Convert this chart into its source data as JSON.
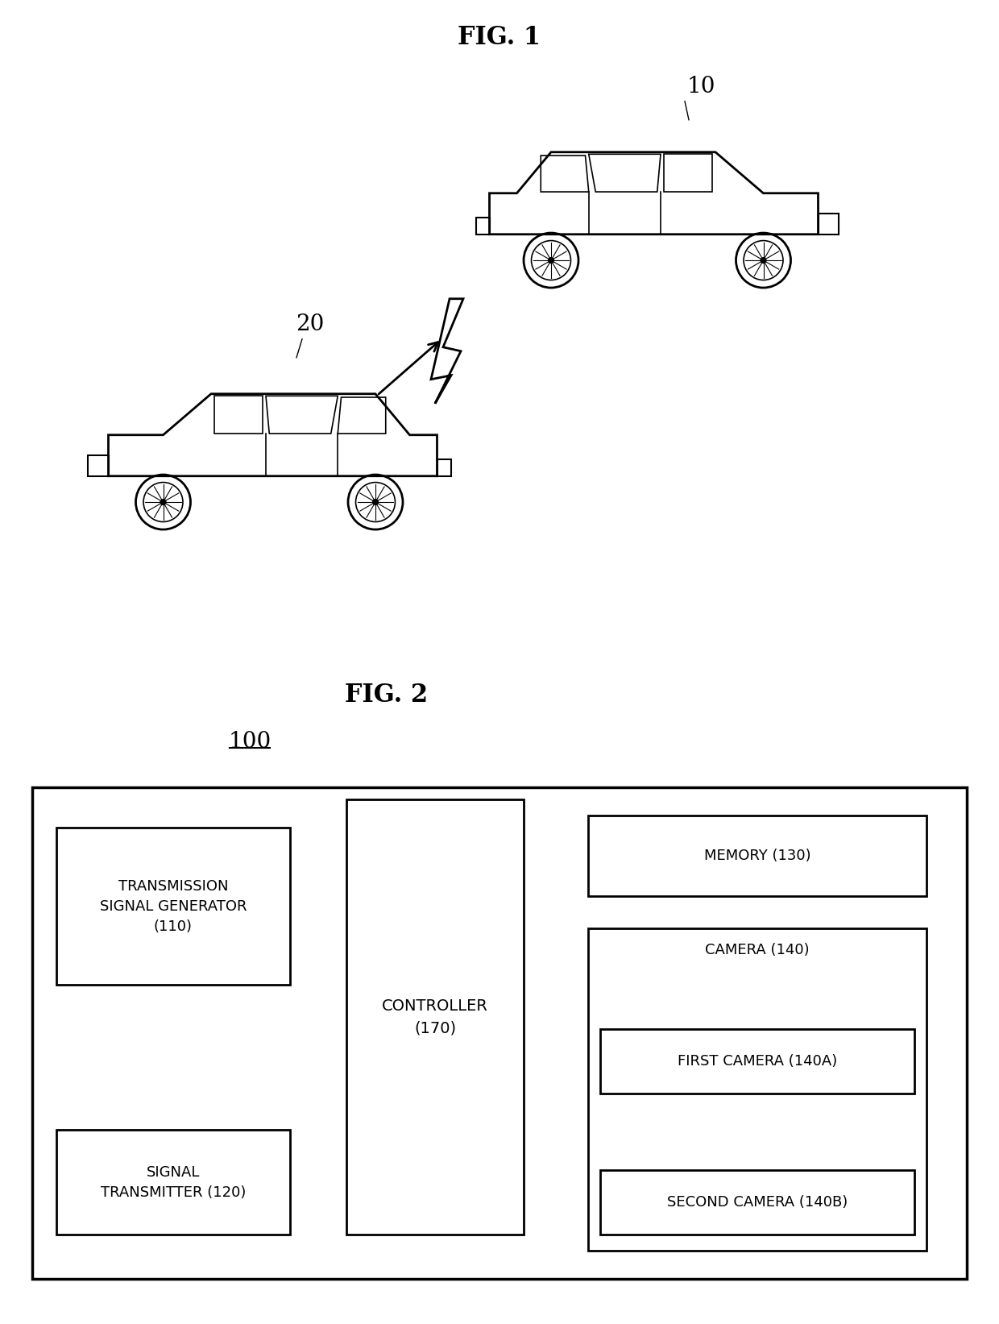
{
  "fig1_title": "FIG. 1",
  "fig2_title": "FIG. 2",
  "label_10": "10",
  "label_20": "20",
  "label_100": "100",
  "bg_color": "#ffffff",
  "box_color": "#000000",
  "text_color": "#000000",
  "blocks": {
    "transmission_signal": "TRANSMISSION\nSIGNAL GENERATOR\n(110)",
    "signal_transmitter": "SIGNAL\nTRANSMITTER (120)",
    "controller": "CONTROLLER\n(170)",
    "memory": "MEMORY (130)",
    "camera": "CAMERA (140)",
    "first_camera": "FIRST CAMERA (140A)",
    "second_camera": "SECOND CAMERA (140B)"
  }
}
